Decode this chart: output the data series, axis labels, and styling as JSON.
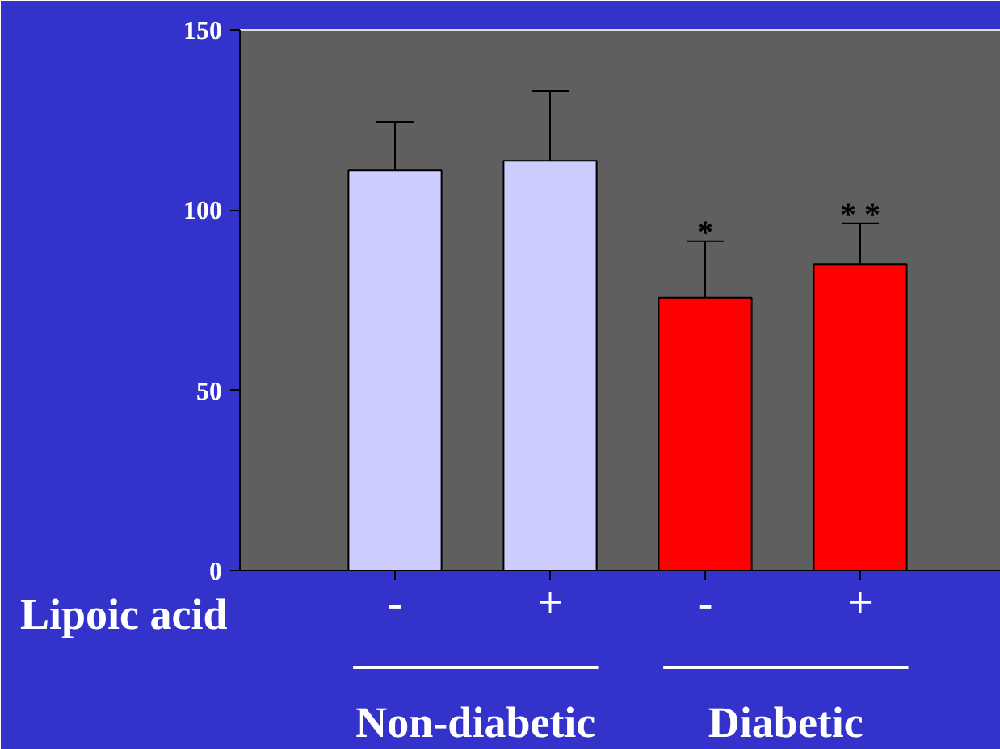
{
  "chart_data": {
    "type": "bar",
    "categories": [
      "-",
      "+",
      "-",
      "+"
    ],
    "xlabel": "Lipoic acid",
    "values": [
      111,
      113.7,
      75.7,
      85
    ],
    "colors": [
      "#ccccff",
      "#ccccff",
      "#ff0000",
      "#ff0000"
    ],
    "errors": [
      [
        111,
        124.5
      ],
      [
        113.7,
        133
      ],
      [
        75.7,
        91.4
      ],
      [
        85,
        96.3
      ]
    ],
    "value_labels": [
      null,
      null,
      "*",
      "* *"
    ],
    "ylim": [
      0,
      150
    ],
    "yticks": [
      0,
      50,
      100,
      150
    ],
    "grid": false,
    "legend": false,
    "annotations": [
      "Non-diabetic",
      "Diabetic"
    ]
  }
}
